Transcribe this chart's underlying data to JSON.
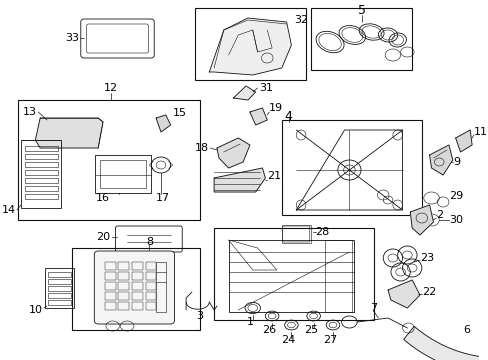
{
  "bg_color": "#ffffff",
  "line_color": "#111111",
  "label_color": "#000000",
  "fig_width": 4.89,
  "fig_height": 3.6,
  "dpi": 100,
  "label_fontsize": 7.0,
  "label_fontsize_sm": 6.5
}
